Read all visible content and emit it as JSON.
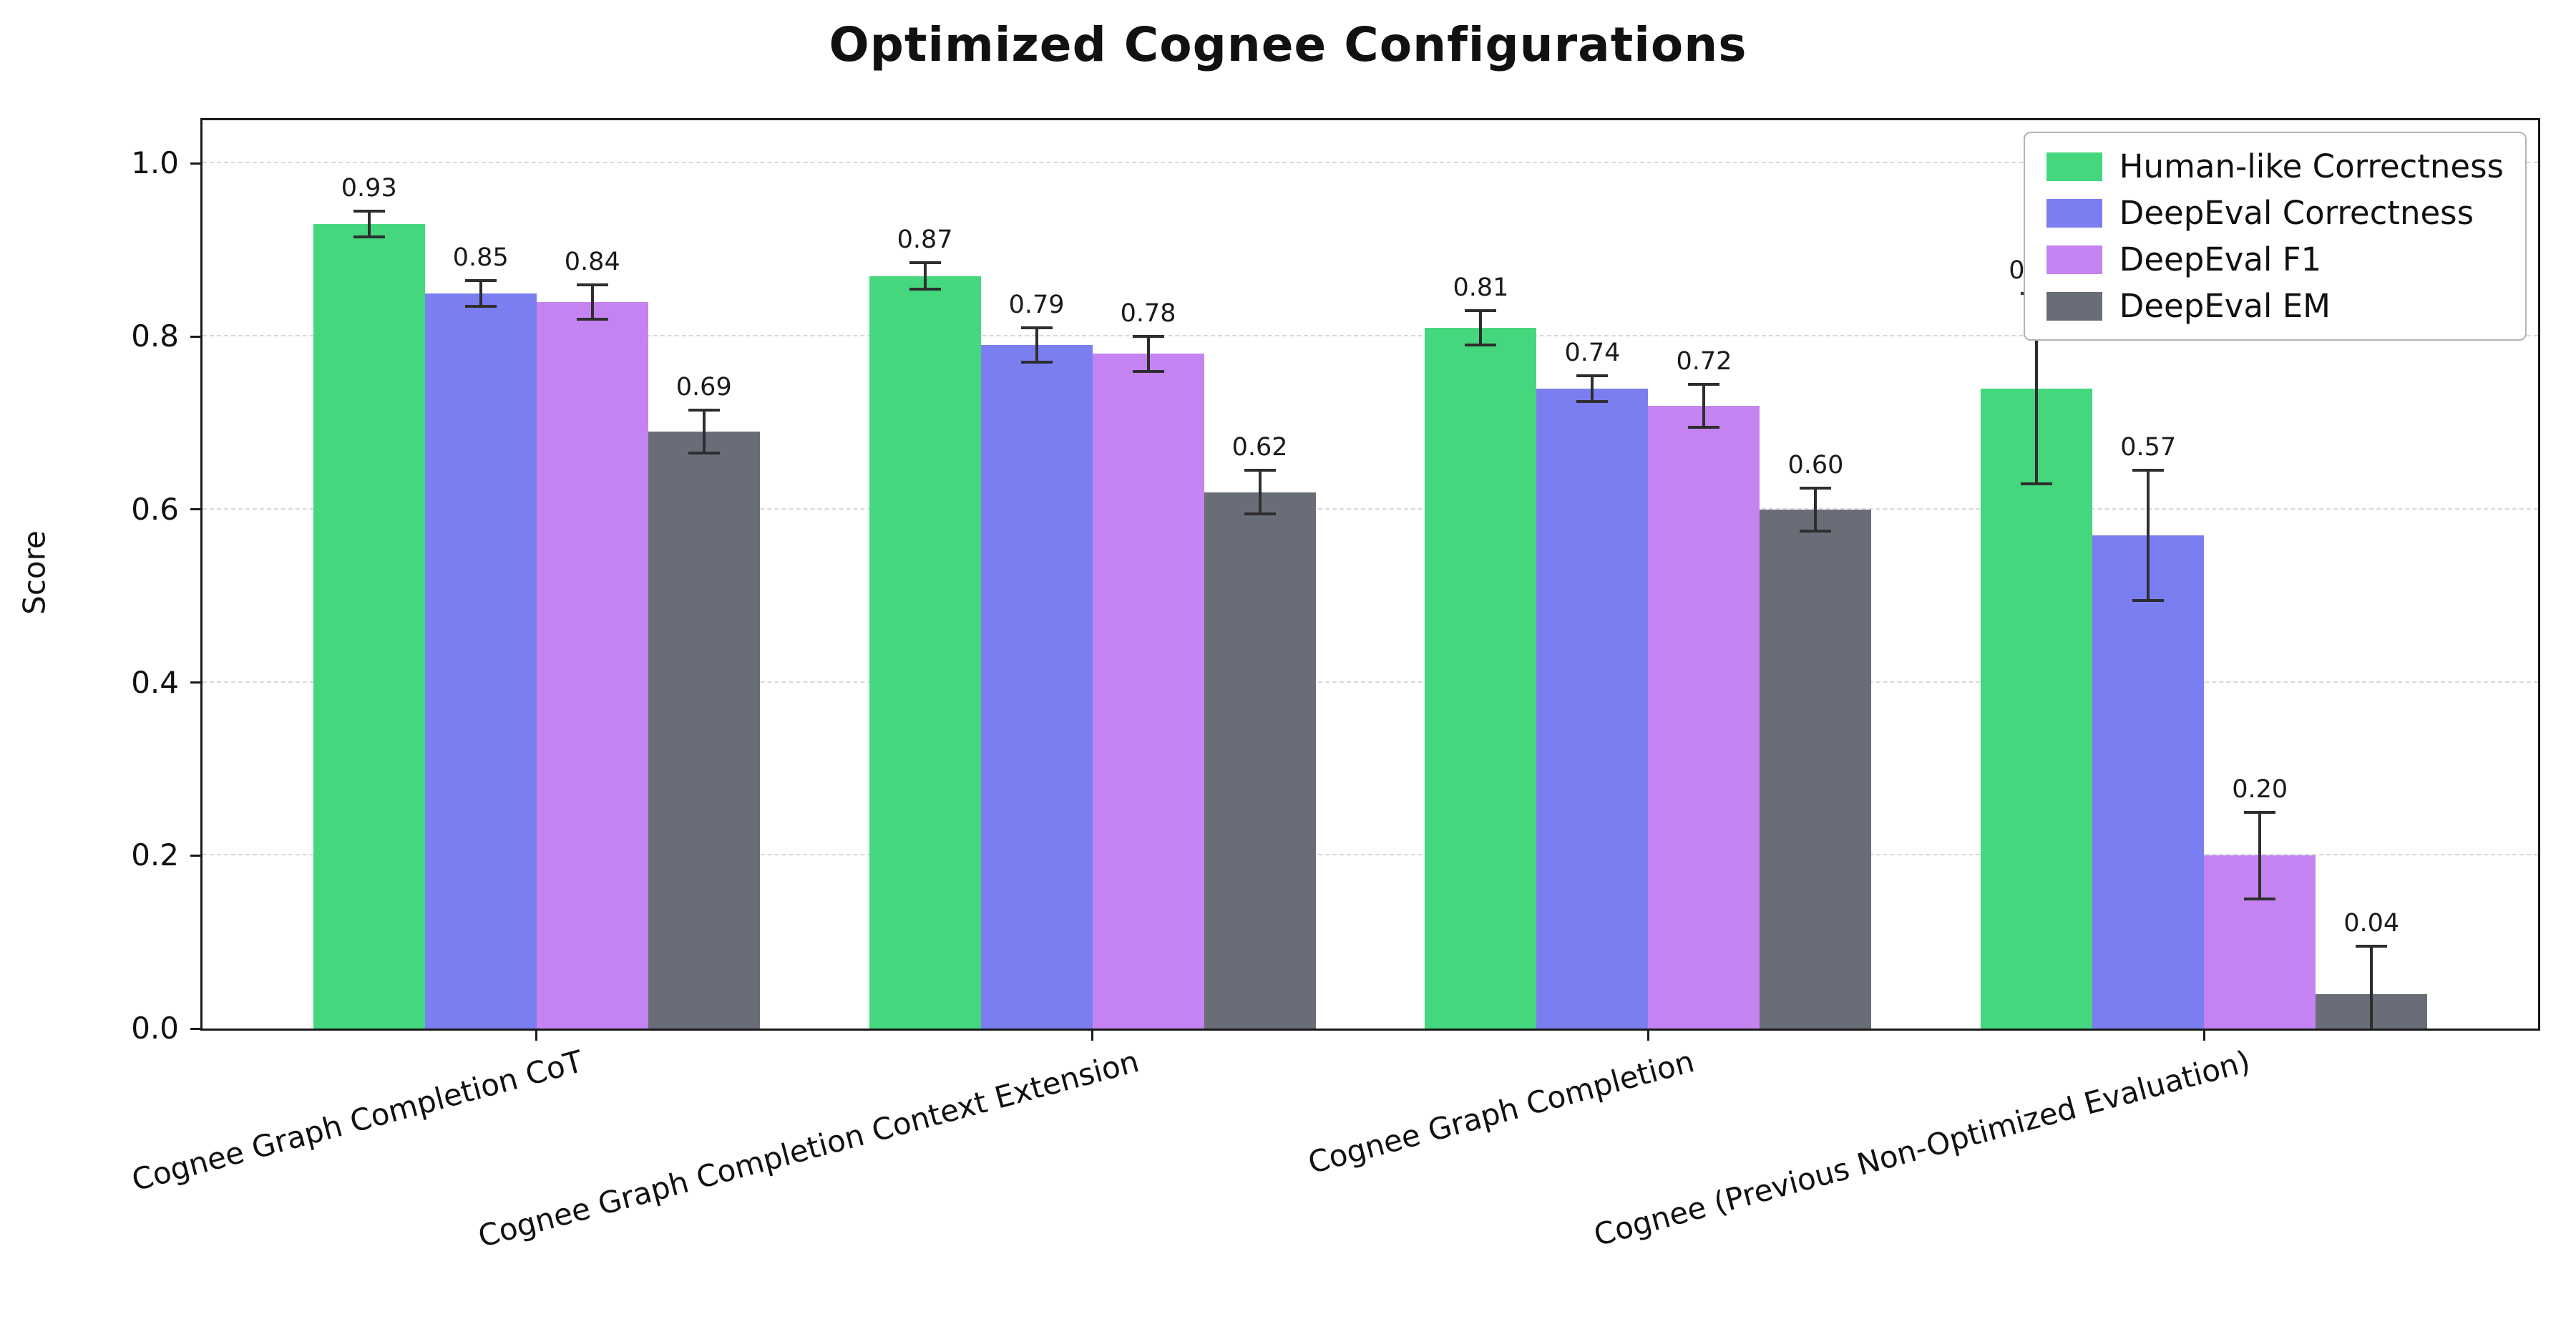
{
  "title": "Optimized Cognee Configurations",
  "chart_data": {
    "type": "bar",
    "title": "Optimized Cognee Configurations",
    "xlabel": "",
    "ylabel": "Score",
    "ylim": [
      0,
      1.05
    ],
    "yticks": [
      0.0,
      0.2,
      0.4,
      0.6,
      0.8,
      1.0
    ],
    "grid": "horizontal-dashed",
    "legend_position": "upper-right",
    "error_bars": true,
    "categories": [
      "Cognee Graph Completion CoT",
      "Cognee Graph Completion Context Extension",
      "Cognee Graph Completion",
      "Cognee (Previous Non-Optimized Evaluation)"
    ],
    "series": [
      {
        "name": "Human-like Correctness",
        "color": "#45d77d",
        "values": [
          0.93,
          0.87,
          0.81,
          0.74
        ],
        "errors": [
          0.015,
          0.015,
          0.02,
          0.11
        ]
      },
      {
        "name": "DeepEval Correctness",
        "color": "#7b7ef0",
        "values": [
          0.85,
          0.79,
          0.74,
          0.57
        ],
        "errors": [
          0.015,
          0.02,
          0.015,
          0.075
        ]
      },
      {
        "name": "DeepEval F1",
        "color": "#c583f2",
        "values": [
          0.84,
          0.78,
          0.72,
          0.2
        ],
        "errors": [
          0.02,
          0.02,
          0.025,
          0.05
        ]
      },
      {
        "name": "DeepEval EM",
        "color": "#696d77",
        "values": [
          0.69,
          0.62,
          0.6,
          0.04
        ],
        "errors": [
          0.025,
          0.025,
          0.025,
          0.055
        ]
      }
    ]
  }
}
